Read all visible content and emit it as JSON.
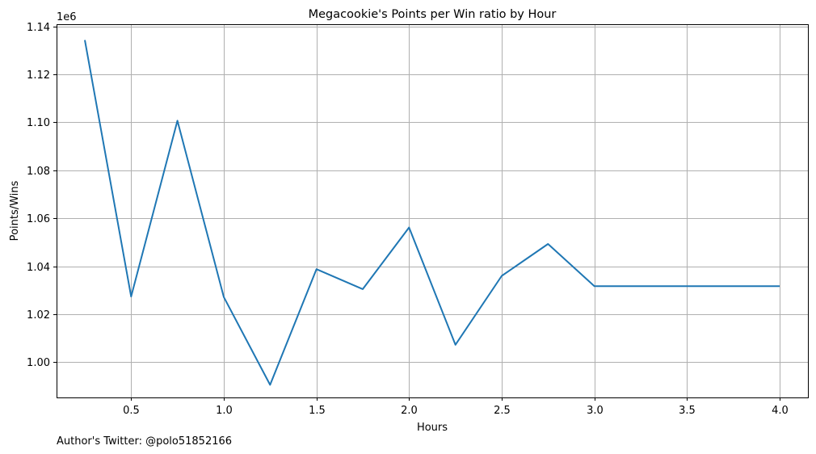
{
  "chart_data": {
    "type": "line",
    "title": "Megacookie's Points per Win ratio by Hour",
    "xlabel": "Hours",
    "ylabel": "Points/Wins",
    "y_offset_label": "1e6",
    "footer": "Author's Twitter: @polo51852166",
    "xlim": [
      0.0975,
      4.1525
    ],
    "ylim": [
      0.98534,
      1.1409
    ],
    "xticks": [
      0.5,
      1.0,
      1.5,
      2.0,
      2.5,
      3.0,
      3.5,
      4.0
    ],
    "xtick_labels": [
      "0.5",
      "1.0",
      "1.5",
      "2.0",
      "2.5",
      "3.0",
      "3.5",
      "4.0"
    ],
    "yticks": [
      1.0,
      1.02,
      1.04,
      1.06,
      1.08,
      1.1,
      1.12,
      1.14
    ],
    "ytick_labels": [
      "1.00",
      "1.02",
      "1.04",
      "1.06",
      "1.08",
      "1.10",
      "1.12",
      "1.14"
    ],
    "grid": true,
    "line_color": "#1f77b4",
    "series": [
      {
        "x": [
          0.25,
          0.5,
          0.75,
          1.0,
          1.25,
          1.5,
          1.75,
          2.0,
          2.25,
          2.5,
          2.75,
          3.0,
          3.25,
          3.5,
          3.75,
          4.0
        ],
        "values": [
          1.1343,
          1.0274,
          1.1007,
          1.0272,
          0.9906,
          1.0388,
          1.0305,
          1.0562,
          1.0073,
          1.036,
          1.0493,
          1.0317,
          1.0317,
          1.0317,
          1.0317,
          1.0317
        ]
      }
    ]
  }
}
